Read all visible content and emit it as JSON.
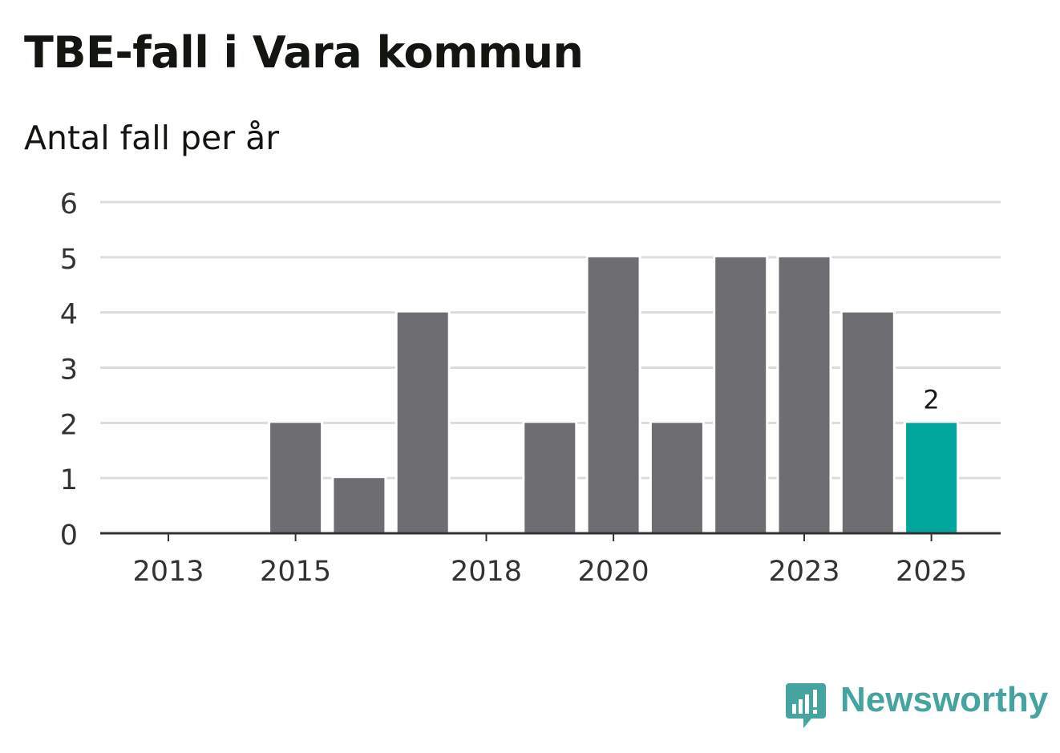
{
  "header": {
    "title": "TBE-fall i Vara kommun",
    "subtitle": "Antal fall per år"
  },
  "brand": {
    "name": "Newsworthy",
    "color": "#45a4a0",
    "icon": "newsworthy-logo-icon"
  },
  "colors": {
    "bar": "#6e6d72",
    "highlight": "#00a59c",
    "grid": "#dcdcdc",
    "axis": "#333333",
    "text": "#333333"
  },
  "chart_data": {
    "type": "bar",
    "categories": [
      "2013",
      "2014",
      "2015",
      "2016",
      "2017",
      "2018",
      "2019",
      "2020",
      "2021",
      "2022",
      "2023",
      "2024",
      "2025"
    ],
    "values": [
      0,
      0,
      2,
      1,
      4,
      0,
      2,
      5,
      2,
      5,
      5,
      4,
      2
    ],
    "x_tick_labels": [
      "2013",
      "2015",
      "2018",
      "2020",
      "2023",
      "2025"
    ],
    "y_ticks": [
      0,
      1,
      2,
      3,
      4,
      5,
      6
    ],
    "ylim": [
      0,
      6
    ],
    "grid": true,
    "highlight_category": "2025",
    "data_labels": [
      {
        "category": "2025",
        "value": 2,
        "label": "2"
      }
    ],
    "xlabel": "",
    "ylabel": ""
  }
}
